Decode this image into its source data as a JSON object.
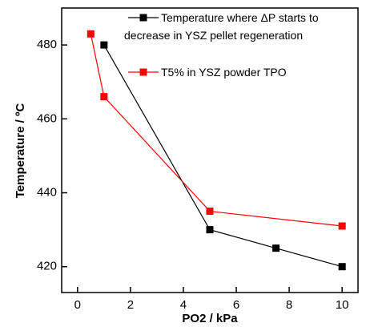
{
  "chart_data": {
    "type": "line",
    "x_label": "PO2 / kPa",
    "y_label": "Temperature / ºC",
    "series": [
      {
        "name": "Temperature where ΔP starts to decrease in YSZ pellet regeneration",
        "color": "#000000",
        "x": [
          1,
          5,
          7.5,
          10
        ],
        "values": [
          480,
          430,
          425,
          420
        ]
      },
      {
        "name": "T5% in YSZ powder TPO",
        "color": "#ff0000",
        "x": [
          0.5,
          1,
          5,
          10
        ],
        "values": [
          483,
          466,
          435,
          431
        ]
      }
    ],
    "xlim": [
      -0.6,
      10.6
    ],
    "xticks": [
      0,
      2,
      4,
      6,
      8,
      10
    ],
    "ylim": [
      413,
      490
    ],
    "yticks": [
      420,
      440,
      460,
      480
    ],
    "legend": "upper right"
  }
}
